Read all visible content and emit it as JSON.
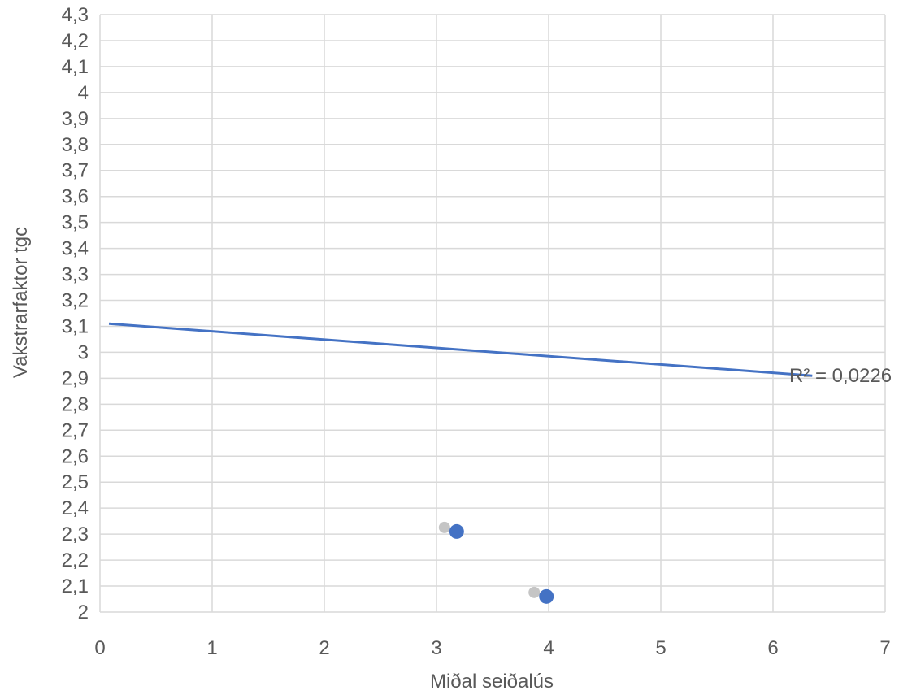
{
  "chart_data": {
    "type": "scatter",
    "title": "",
    "xlabel": "Miðal seiðalús",
    "ylabel": "Vakstrarfaktor tgc",
    "xlim": [
      0,
      7
    ],
    "ylim": [
      2,
      4.3
    ],
    "x_ticks": [
      "0",
      "1",
      "2",
      "3",
      "4",
      "5",
      "6",
      "7"
    ],
    "y_ticks": [
      "2",
      "2,1",
      "2,2",
      "2,3",
      "2,4",
      "2,5",
      "2,6",
      "2,7",
      "2,8",
      "2,9",
      "3",
      "3,1",
      "3,2",
      "3,3",
      "3,4",
      "3,5",
      "3,6",
      "3,7",
      "3,8",
      "3,9",
      "4",
      "4,1",
      "4,2",
      "4,3"
    ],
    "grid": true,
    "series": [
      {
        "points": [
          {
            "x": 3.18,
            "y": 2.31
          },
          {
            "x": 3.98,
            "y": 2.06
          }
        ],
        "color": "#4472c4"
      }
    ],
    "trendline": {
      "type": "linear",
      "x": [
        0.08,
        6.35
      ],
      "y": [
        3.11,
        2.91
      ],
      "color": "#4472c4",
      "r2_label": "R² = 0,0226"
    }
  }
}
